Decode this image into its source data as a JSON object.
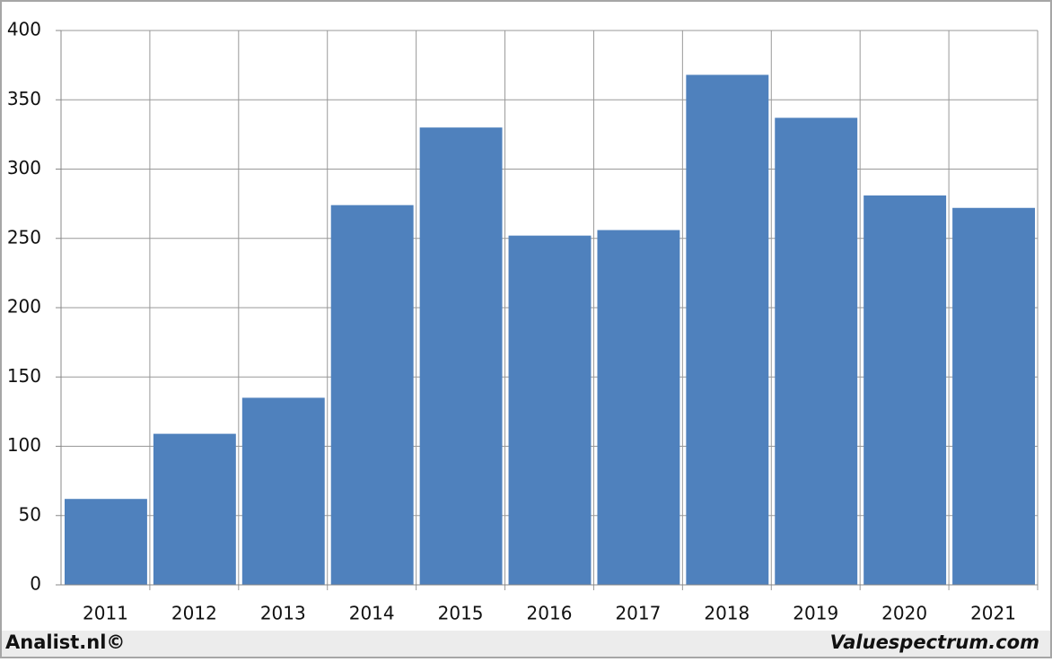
{
  "chart_data": {
    "type": "bar",
    "categories": [
      "2011",
      "2012",
      "2013",
      "2014",
      "2015",
      "2016",
      "2017",
      "2018",
      "2019",
      "2020",
      "2021"
    ],
    "values": [
      62,
      109,
      135,
      274,
      330,
      252,
      256,
      368,
      337,
      281,
      272
    ],
    "color": "#4f81bd",
    "ylim": [
      0,
      400
    ],
    "yticks": [
      0,
      50,
      100,
      150,
      200,
      250,
      300,
      350,
      400
    ],
    "grid": true
  },
  "footer": {
    "left": "Analist.nl©",
    "right": "Valuespectrum.com"
  }
}
